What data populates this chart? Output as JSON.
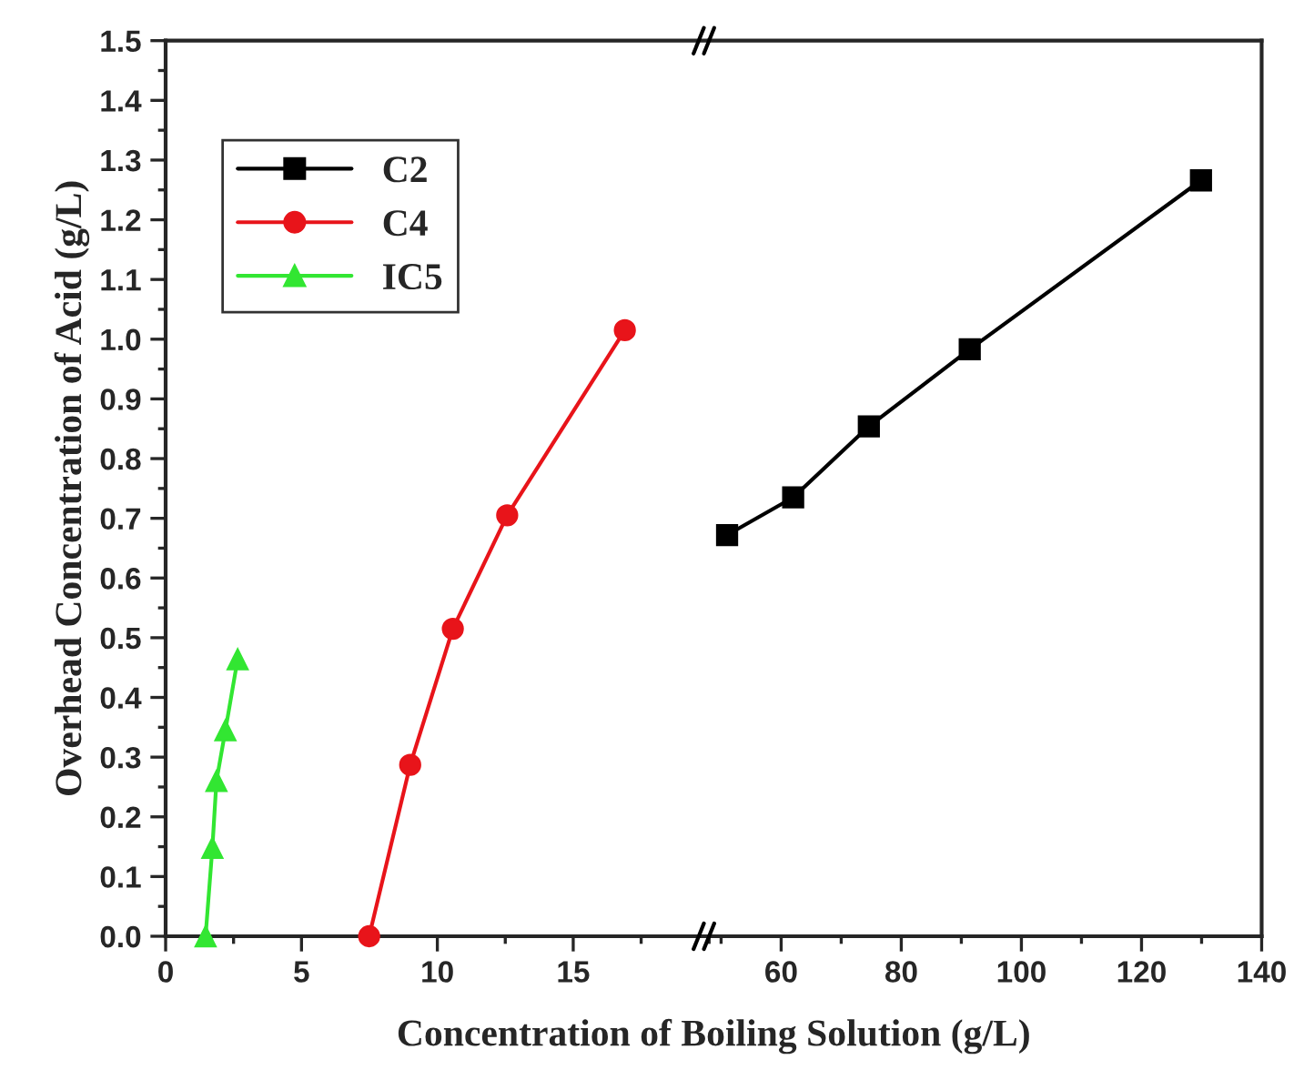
{
  "chart_data": [
    {
      "type": "line",
      "xlabel": "Concentration of Boiling Solution (g/L)",
      "ylabel": "Overhead Concentration of Acid (g/L)",
      "xlim": [
        0,
        20
      ],
      "xticks": [
        0,
        5,
        10,
        15
      ],
      "ylim": [
        0,
        1.5
      ],
      "yticks": [
        {
          "value": 0,
          "label": "0.0"
        },
        {
          "value": 0.1,
          "label": "0.1"
        },
        {
          "value": 0.2,
          "label": "0.2"
        },
        {
          "value": 0.3,
          "label": "0.3"
        },
        {
          "value": 0.4,
          "label": "0.4"
        },
        {
          "value": 0.5,
          "label": "0.5"
        },
        {
          "value": 0.6,
          "label": "0.6"
        },
        {
          "value": 0.7,
          "label": "0.7"
        },
        {
          "value": 0.8,
          "label": "0.8"
        },
        {
          "value": 0.9,
          "label": "0.9"
        },
        {
          "value": 1.0,
          "label": "1.0"
        },
        {
          "value": 1.1,
          "label": "1.1"
        },
        {
          "value": 1.2,
          "label": "1.2"
        },
        {
          "value": 1.3,
          "label": "1.3"
        },
        {
          "value": 1.4,
          "label": "1.4"
        },
        {
          "value": 1.5,
          "label": "1.5"
        }
      ],
      "legend": "top left",
      "grid": false,
      "series": [
        {
          "name": "C4",
          "color": "#e8141a",
          "marker": "circle",
          "x": [
            7.49,
            9.0,
            10.57,
            12.57,
            16.9
          ],
          "values": [
            0,
            0.287,
            0.515,
            0.705,
            1.015
          ]
        },
        {
          "name": "IC5",
          "color": "#32e632",
          "marker": "triangle",
          "x": [
            1.47,
            1.72,
            1.87,
            2.2,
            2.65
          ],
          "values": [
            0,
            0.148,
            0.26,
            0.345,
            0.464
          ]
        }
      ]
    },
    {
      "type": "line",
      "xlim": [
        48,
        140
      ],
      "xticks": [
        60,
        80,
        100,
        120,
        140
      ],
      "ylim": [
        0,
        1.5
      ],
      "tick_labels": "x",
      "grid": false,
      "series": [
        {
          "name": "C2",
          "color": "#000000",
          "marker": "square",
          "x": [
            51.0,
            62.0,
            74.6,
            91.4,
            129.9
          ],
          "values": [
            0.672,
            0.735,
            0.854,
            0.983,
            1.266
          ]
        }
      ]
    }
  ]
}
